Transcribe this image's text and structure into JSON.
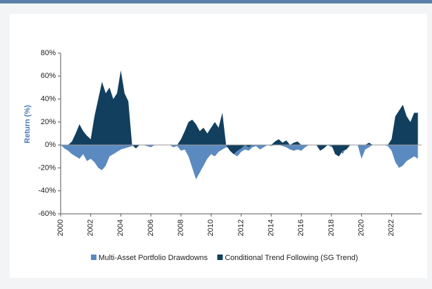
{
  "chart_data": {
    "type": "area",
    "ylabel": "Return (%)",
    "x": [
      2000,
      2000.25,
      2000.5,
      2000.75,
      2001,
      2001.25,
      2001.5,
      2001.75,
      2002,
      2002.25,
      2002.5,
      2002.75,
      2003,
      2003.25,
      2003.5,
      2003.75,
      2004,
      2004.25,
      2004.5,
      2004.75,
      2005,
      2005.25,
      2005.5,
      2005.75,
      2006,
      2006.25,
      2006.5,
      2006.75,
      2007,
      2007.25,
      2007.5,
      2007.75,
      2008,
      2008.25,
      2008.5,
      2008.75,
      2009,
      2009.25,
      2009.5,
      2009.75,
      2010,
      2010.25,
      2010.5,
      2010.75,
      2011,
      2011.25,
      2011.5,
      2011.75,
      2012,
      2012.25,
      2012.5,
      2012.75,
      2013,
      2013.25,
      2013.5,
      2013.75,
      2014,
      2014.25,
      2014.5,
      2014.75,
      2015,
      2015.25,
      2015.5,
      2015.75,
      2016,
      2016.25,
      2016.5,
      2016.75,
      2017,
      2017.25,
      2017.5,
      2017.75,
      2018,
      2018.25,
      2018.5,
      2018.75,
      2019,
      2019.25,
      2019.5,
      2019.75,
      2020,
      2020.25,
      2020.5,
      2020.75,
      2021,
      2021.25,
      2021.5,
      2021.75,
      2022,
      2022.25,
      2022.5,
      2022.75,
      2023,
      2023.25,
      2023.5,
      2023.75
    ],
    "series": [
      {
        "name": "Multi-Asset Portfolio Drawdowns",
        "color": "#5b8ac0",
        "values": [
          0,
          -3,
          -5,
          -8,
          -10,
          -12,
          -8,
          -14,
          -12,
          -15,
          -20,
          -22,
          -18,
          -10,
          -8,
          -6,
          -4,
          -3,
          -2,
          -1,
          0,
          0,
          0,
          -1,
          -2,
          0,
          0,
          0,
          0,
          0,
          -2,
          -1,
          -5,
          -4,
          -10,
          -20,
          -30,
          -24,
          -18,
          -12,
          -8,
          -10,
          -6,
          -4,
          -2,
          -3,
          -8,
          -10,
          -6,
          -4,
          -5,
          -2,
          -1,
          -4,
          -2,
          0,
          -1,
          0,
          0,
          -1,
          -2,
          -4,
          -5,
          -4,
          -5,
          -2,
          0,
          0,
          0,
          0,
          0,
          0,
          -2,
          -1,
          -3,
          -8,
          -2,
          0,
          0,
          0,
          -12,
          -4,
          -2,
          0,
          0,
          0,
          0,
          -1,
          -5,
          -15,
          -20,
          -18,
          -14,
          -12,
          -10,
          -12
        ]
      },
      {
        "name": "Conditional Trend Following (SG Trend)",
        "color": "#123f5e",
        "values": [
          0,
          0,
          0,
          3,
          10,
          18,
          12,
          8,
          5,
          25,
          40,
          55,
          45,
          50,
          40,
          45,
          65,
          45,
          38,
          0,
          -3,
          0,
          0,
          0,
          0,
          0,
          0,
          0,
          0,
          0,
          0,
          0,
          5,
          12,
          20,
          22,
          18,
          12,
          15,
          10,
          15,
          20,
          15,
          28,
          0,
          -5,
          -8,
          -5,
          -3,
          0,
          -2,
          0,
          0,
          0,
          0,
          0,
          0,
          3,
          5,
          2,
          4,
          0,
          2,
          3,
          0,
          0,
          0,
          0,
          0,
          -5,
          -3,
          0,
          0,
          -8,
          -10,
          -5,
          -4,
          0,
          0,
          0,
          0,
          0,
          2,
          0,
          0,
          0,
          0,
          0,
          5,
          25,
          30,
          35,
          25,
          20,
          28,
          28
        ]
      }
    ],
    "xlim": [
      2000,
      2024
    ],
    "xticks": [
      2000,
      2002,
      2004,
      2006,
      2008,
      2010,
      2012,
      2014,
      2016,
      2018,
      2020,
      2022
    ],
    "ylim": [
      -60,
      80
    ],
    "yticks": [
      {
        "value": -60,
        "label": "-60%"
      },
      {
        "value": -40,
        "label": "-40%"
      },
      {
        "value": -20,
        "label": "-20%"
      },
      {
        "value": 0,
        "label": "0%"
      },
      {
        "value": 20,
        "label": "20%"
      },
      {
        "value": 40,
        "label": "40%"
      },
      {
        "value": 60,
        "label": "60%"
      },
      {
        "value": 80,
        "label": "80%"
      }
    ]
  }
}
